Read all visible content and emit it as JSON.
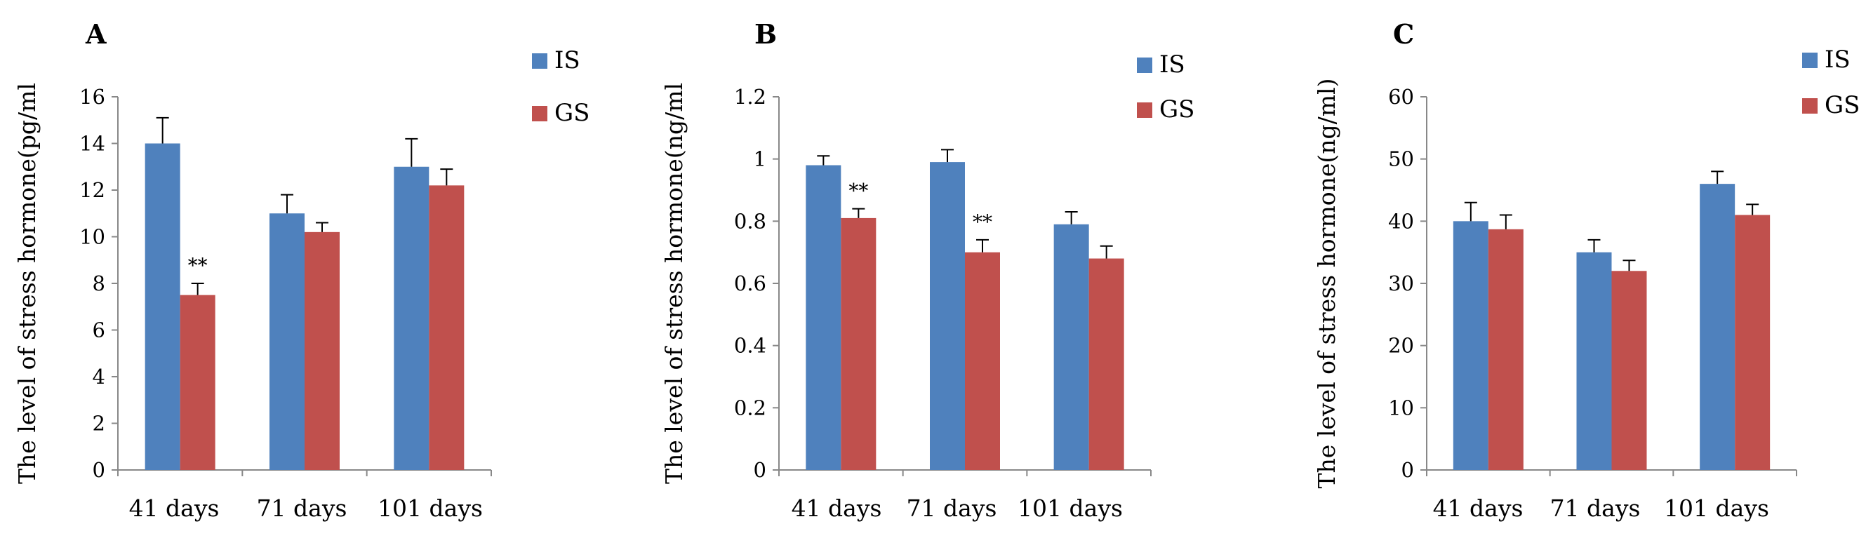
{
  "colors": {
    "IS": "#4f81bd",
    "GS": "#c0504d",
    "axis": "#888888",
    "errorbar": "#000000"
  },
  "chart_data": [
    {
      "type": "bar",
      "panel_label": "A",
      "ylabel": "The level of stress hormone(pg/ml",
      "categories": [
        "41 days",
        "71 days",
        "101 days"
      ],
      "ylim": [
        0,
        16
      ],
      "yticks": [
        "0",
        "2",
        "4",
        "6",
        "8",
        "10",
        "12",
        "14",
        "16"
      ],
      "series": [
        {
          "name": "IS",
          "values": [
            14.0,
            11.0,
            13.0
          ],
          "errors": [
            1.1,
            0.8,
            1.2
          ]
        },
        {
          "name": "GS",
          "values": [
            7.5,
            10.2,
            12.2
          ],
          "errors": [
            0.5,
            0.4,
            0.7
          ]
        }
      ],
      "annotations": [
        {
          "text": "**",
          "series": "GS",
          "category": "41 days"
        }
      ]
    },
    {
      "type": "bar",
      "panel_label": "B",
      "ylabel": "The level of stress hormone(ng/ml",
      "categories": [
        "41 days",
        "71 days",
        "101 days"
      ],
      "ylim": [
        0,
        1.2
      ],
      "yticks": [
        "0",
        "0.2",
        "0.4",
        "0.6",
        "0.8",
        "1",
        "1.2"
      ],
      "series": [
        {
          "name": "IS",
          "values": [
            0.98,
            0.99,
            0.79
          ],
          "errors": [
            0.03,
            0.04,
            0.04
          ]
        },
        {
          "name": "GS",
          "values": [
            0.81,
            0.7,
            0.68
          ],
          "errors": [
            0.03,
            0.04,
            0.04
          ]
        }
      ],
      "annotations": [
        {
          "text": "**",
          "series": "GS",
          "category": "41 days"
        },
        {
          "text": "**",
          "series": "GS",
          "category": "71 days"
        }
      ]
    },
    {
      "type": "bar",
      "panel_label": "C",
      "ylabel": "The level of stress hormone(ng/ml)",
      "categories": [
        "41 days",
        "71 days",
        "101 days"
      ],
      "ylim": [
        0,
        60
      ],
      "yticks": [
        "0",
        "10",
        "20",
        "30",
        "40",
        "50",
        "60"
      ],
      "series": [
        {
          "name": "IS",
          "values": [
            40.0,
            35.0,
            46.0
          ],
          "errors": [
            3.0,
            2.0,
            2.0
          ]
        },
        {
          "name": "GS",
          "values": [
            38.7,
            32.0,
            41.0
          ],
          "errors": [
            2.3,
            1.7,
            1.7
          ]
        }
      ],
      "annotations": []
    }
  ]
}
